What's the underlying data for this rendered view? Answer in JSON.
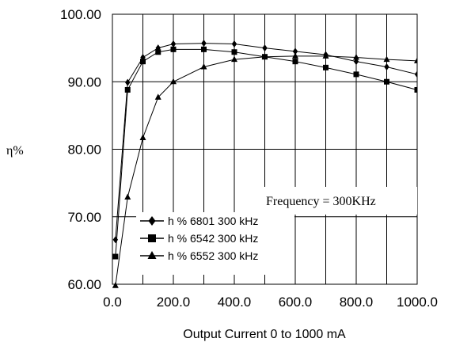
{
  "chart_data": {
    "type": "line",
    "title": "",
    "xlabel": "Output Current 0 to 1000 mA",
    "ylabel": "η%",
    "xlim": [
      0,
      1000
    ],
    "ylim": [
      60,
      100
    ],
    "x_ticks": [
      "0.0",
      "200.0",
      "400.0",
      "600.0",
      "800.0",
      "1000.0"
    ],
    "y_ticks": [
      "60.00",
      "70.00",
      "80.00",
      "90.00",
      "100.00"
    ],
    "grid": true,
    "annotation": "Frequency = 300KHz",
    "legend_position": "bottom-left",
    "series": [
      {
        "name": "h % 6801 300 kHz",
        "marker": "diamond",
        "x": [
          10,
          50,
          100,
          150,
          200,
          300,
          400,
          500,
          600,
          700,
          800,
          900,
          1000
        ],
        "y": [
          66.6,
          89.9,
          93.6,
          95.0,
          95.6,
          95.7,
          95.6,
          95.0,
          94.5,
          94.0,
          93.0,
          92.2,
          91.1
        ]
      },
      {
        "name": "h % 6542 300 kHz",
        "marker": "square",
        "x": [
          10,
          50,
          100,
          150,
          200,
          300,
          400,
          500,
          600,
          700,
          800,
          900,
          1000
        ],
        "y": [
          64.1,
          88.8,
          93.0,
          94.4,
          94.8,
          94.8,
          94.4,
          93.7,
          93.0,
          92.1,
          91.1,
          90.0,
          88.8
        ]
      },
      {
        "name": "h % 6552 300 kHz",
        "marker": "triangle",
        "x": [
          10,
          50,
          100,
          150,
          200,
          300,
          400,
          500,
          600,
          700,
          800,
          900,
          1000
        ],
        "y": [
          59.8,
          72.9,
          81.7,
          87.7,
          90.0,
          92.2,
          93.3,
          93.7,
          93.8,
          93.8,
          93.6,
          93.3,
          93.1
        ]
      }
    ]
  }
}
